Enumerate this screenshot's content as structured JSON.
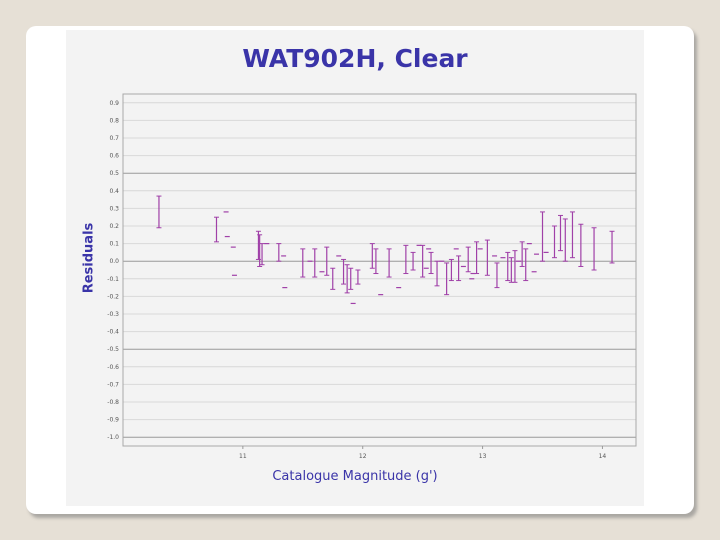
{
  "chart_data": {
    "type": "scatter",
    "title": "WAT902H, Clear",
    "xlabel": "Catalogue Magnitude (g')",
    "ylabel": "Residuals",
    "xlim": [
      10.0,
      14.28
    ],
    "ylim": [
      -1.05,
      0.95
    ],
    "x_ticks": [
      11,
      12,
      13,
      14
    ],
    "y_ticks": [
      0.9,
      0.8,
      0.7,
      0.6,
      0.5,
      0.4,
      0.3,
      0.2,
      0.1,
      0.0,
      -0.1,
      -0.2,
      -0.3,
      -0.4,
      -0.5,
      -0.6,
      -0.7,
      -0.8,
      -0.9,
      -1.0
    ],
    "grid": "horizontal",
    "marker_color": "#a040a8",
    "series": [
      {
        "points": [
          {
            "x": 10.3,
            "y": 0.28,
            "err": 0.09
          },
          {
            "x": 10.78,
            "y": 0.18,
            "err": 0.07
          },
          {
            "x": 10.86,
            "y": 0.28,
            "err": 0.0
          },
          {
            "x": 10.87,
            "y": 0.14,
            "err": 0.0
          },
          {
            "x": 10.92,
            "y": 0.08,
            "err": 0.0
          },
          {
            "x": 10.93,
            "y": -0.08,
            "err": 0.0
          },
          {
            "x": 11.13,
            "y": 0.09,
            "err": 0.08
          },
          {
            "x": 11.14,
            "y": 0.06,
            "err": 0.09
          },
          {
            "x": 11.16,
            "y": 0.04,
            "err": 0.06
          },
          {
            "x": 11.2,
            "y": 0.1,
            "err": 0.0
          },
          {
            "x": 11.3,
            "y": 0.05,
            "err": 0.05
          },
          {
            "x": 11.34,
            "y": 0.03,
            "err": 0.0
          },
          {
            "x": 11.35,
            "y": -0.15,
            "err": 0.0
          },
          {
            "x": 11.5,
            "y": -0.01,
            "err": 0.08
          },
          {
            "x": 11.56,
            "y": 0.0,
            "err": 0.0
          },
          {
            "x": 11.6,
            "y": -0.01,
            "err": 0.08
          },
          {
            "x": 11.66,
            "y": -0.06,
            "err": 0.0
          },
          {
            "x": 11.7,
            "y": 0.0,
            "err": 0.08
          },
          {
            "x": 11.75,
            "y": -0.1,
            "err": 0.06
          },
          {
            "x": 11.8,
            "y": 0.03,
            "err": 0.0
          },
          {
            "x": 11.84,
            "y": -0.06,
            "err": 0.07
          },
          {
            "x": 11.87,
            "y": -0.1,
            "err": 0.08
          },
          {
            "x": 11.9,
            "y": -0.1,
            "err": 0.06
          },
          {
            "x": 11.92,
            "y": -0.24,
            "err": 0.0
          },
          {
            "x": 11.96,
            "y": -0.09,
            "err": 0.04
          },
          {
            "x": 12.08,
            "y": 0.03,
            "err": 0.07
          },
          {
            "x": 12.11,
            "y": 0.0,
            "err": 0.07
          },
          {
            "x": 12.15,
            "y": -0.19,
            "err": 0.0
          },
          {
            "x": 12.22,
            "y": -0.01,
            "err": 0.08
          },
          {
            "x": 12.3,
            "y": -0.15,
            "err": 0.0
          },
          {
            "x": 12.36,
            "y": 0.01,
            "err": 0.08
          },
          {
            "x": 12.42,
            "y": 0.0,
            "err": 0.05
          },
          {
            "x": 12.47,
            "y": 0.09,
            "err": 0.0
          },
          {
            "x": 12.5,
            "y": 0.0,
            "err": 0.09
          },
          {
            "x": 12.53,
            "y": -0.04,
            "err": 0.0
          },
          {
            "x": 12.55,
            "y": 0.07,
            "err": 0.0
          },
          {
            "x": 12.57,
            "y": -0.01,
            "err": 0.06
          },
          {
            "x": 12.62,
            "y": -0.07,
            "err": 0.07
          },
          {
            "x": 12.66,
            "y": 0.0,
            "err": 0.0
          },
          {
            "x": 12.7,
            "y": -0.1,
            "err": 0.09
          },
          {
            "x": 12.74,
            "y": -0.05,
            "err": 0.06
          },
          {
            "x": 12.78,
            "y": 0.07,
            "err": 0.0
          },
          {
            "x": 12.8,
            "y": -0.04,
            "err": 0.07
          },
          {
            "x": 12.84,
            "y": -0.03,
            "err": 0.0
          },
          {
            "x": 12.88,
            "y": 0.01,
            "err": 0.07
          },
          {
            "x": 12.91,
            "y": -0.1,
            "err": 0.0
          },
          {
            "x": 12.92,
            "y": -0.07,
            "err": 0.0
          },
          {
            "x": 12.95,
            "y": 0.02,
            "err": 0.09
          },
          {
            "x": 12.98,
            "y": 0.07,
            "err": 0.0
          },
          {
            "x": 13.04,
            "y": 0.02,
            "err": 0.1
          },
          {
            "x": 13.1,
            "y": 0.03,
            "err": 0.0
          },
          {
            "x": 13.12,
            "y": -0.08,
            "err": 0.07
          },
          {
            "x": 13.17,
            "y": 0.02,
            "err": 0.0
          },
          {
            "x": 13.21,
            "y": -0.03,
            "err": 0.08
          },
          {
            "x": 13.24,
            "y": -0.05,
            "err": 0.07
          },
          {
            "x": 13.27,
            "y": -0.03,
            "err": 0.09
          },
          {
            "x": 13.3,
            "y": 0.0,
            "err": 0.0
          },
          {
            "x": 13.33,
            "y": 0.04,
            "err": 0.07
          },
          {
            "x": 13.36,
            "y": -0.02,
            "err": 0.09
          },
          {
            "x": 13.39,
            "y": 0.1,
            "err": 0.0
          },
          {
            "x": 13.43,
            "y": -0.06,
            "err": 0.0
          },
          {
            "x": 13.45,
            "y": 0.04,
            "err": 0.0
          },
          {
            "x": 13.5,
            "y": 0.14,
            "err": 0.14
          },
          {
            "x": 13.53,
            "y": 0.05,
            "err": 0.0
          },
          {
            "x": 13.6,
            "y": 0.11,
            "err": 0.09
          },
          {
            "x": 13.65,
            "y": 0.16,
            "err": 0.1
          },
          {
            "x": 13.69,
            "y": 0.12,
            "err": 0.12
          },
          {
            "x": 13.75,
            "y": 0.15,
            "err": 0.13
          },
          {
            "x": 13.82,
            "y": 0.09,
            "err": 0.12
          },
          {
            "x": 13.93,
            "y": 0.07,
            "err": 0.12
          },
          {
            "x": 14.08,
            "y": 0.08,
            "err": 0.09
          }
        ]
      }
    ]
  }
}
